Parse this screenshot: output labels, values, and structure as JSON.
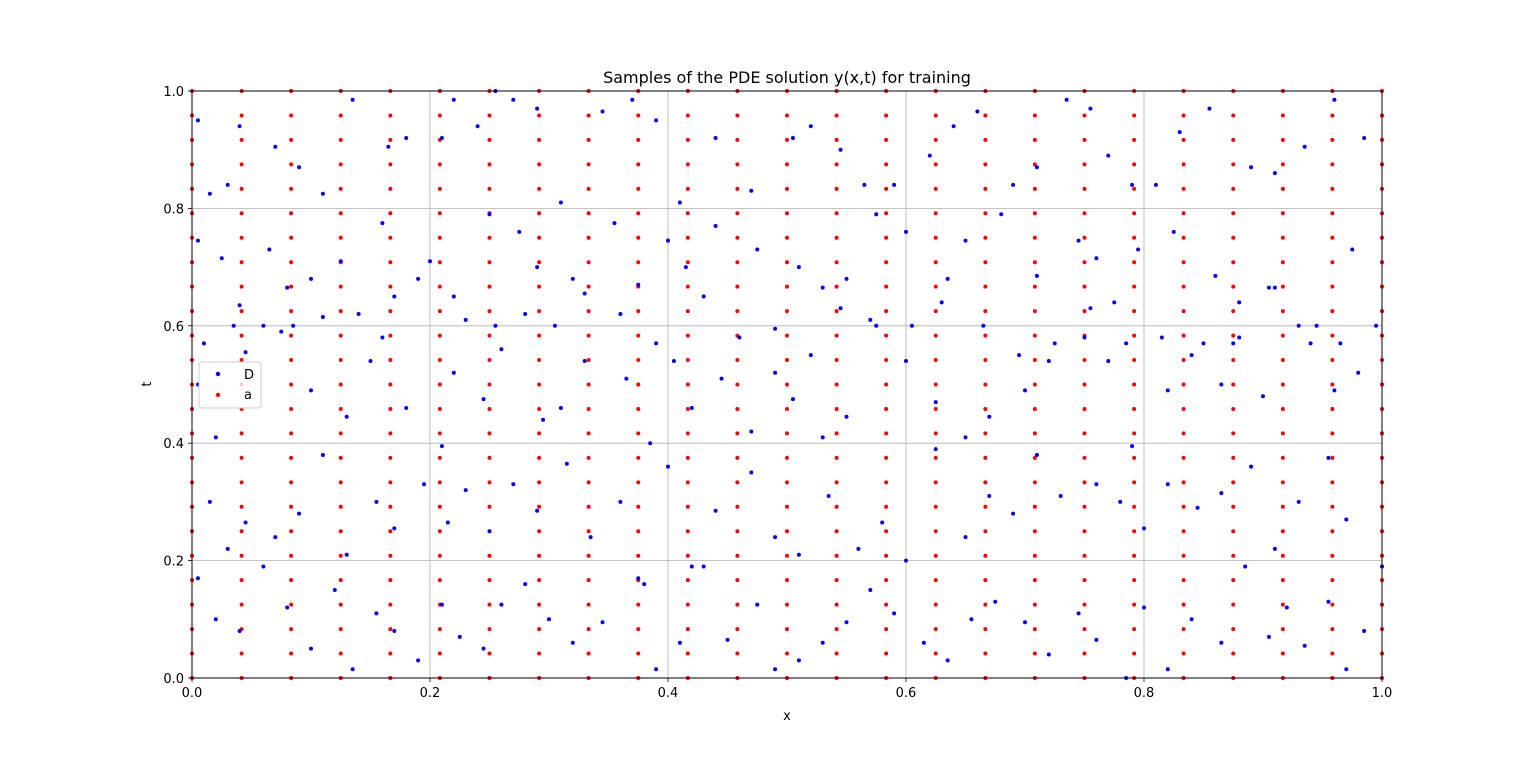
{
  "chart_data": {
    "type": "scatter",
    "title": "Samples of the PDE solution y(x,t) for training",
    "xlabel": "x",
    "ylabel": "t",
    "xlim": [
      0.0,
      1.0
    ],
    "ylim": [
      0.0,
      1.0
    ],
    "grid": true,
    "legend_position": "center-left",
    "x_ticks": [
      "0.0",
      "0.2",
      "0.4",
      "0.6",
      "0.8",
      "1.0"
    ],
    "y_ticks": [
      "0.0",
      "0.2",
      "0.4",
      "0.6",
      "0.8",
      "1.0"
    ],
    "series": [
      {
        "name": "D",
        "color": "#0000ff",
        "points": [
          [
            0.005,
            0.95
          ],
          [
            0.015,
            0.825
          ],
          [
            0.03,
            0.84
          ],
          [
            0.04,
            0.94
          ],
          [
            0.07,
            0.905
          ],
          [
            0.09,
            0.87
          ],
          [
            0.11,
            0.825
          ],
          [
            0.135,
            0.985
          ],
          [
            0.165,
            0.905
          ],
          [
            0.18,
            0.92
          ],
          [
            0.21,
            0.92
          ],
          [
            0.22,
            0.985
          ],
          [
            0.24,
            0.94
          ],
          [
            0.255,
            1.0
          ],
          [
            0.27,
            0.985
          ],
          [
            0.29,
            0.97
          ],
          [
            0.31,
            0.81
          ],
          [
            0.345,
            0.965
          ],
          [
            0.37,
            0.985
          ],
          [
            0.39,
            0.95
          ],
          [
            0.41,
            0.81
          ],
          [
            0.44,
            0.92
          ],
          [
            0.47,
            0.83
          ],
          [
            0.505,
            0.92
          ],
          [
            0.52,
            0.94
          ],
          [
            0.545,
            0.9
          ],
          [
            0.565,
            0.84
          ],
          [
            0.59,
            0.84
          ],
          [
            0.62,
            0.89
          ],
          [
            0.64,
            0.94
          ],
          [
            0.66,
            0.965
          ],
          [
            0.69,
            0.84
          ],
          [
            0.71,
            0.87
          ],
          [
            0.735,
            0.985
          ],
          [
            0.755,
            0.97
          ],
          [
            0.77,
            0.89
          ],
          [
            0.79,
            0.84
          ],
          [
            0.81,
            0.84
          ],
          [
            0.83,
            0.93
          ],
          [
            0.855,
            0.97
          ],
          [
            0.89,
            0.87
          ],
          [
            0.91,
            0.86
          ],
          [
            0.935,
            0.905
          ],
          [
            0.96,
            0.985
          ],
          [
            0.985,
            0.92
          ],
          [
            0.005,
            0.745
          ],
          [
            0.025,
            0.715
          ],
          [
            0.04,
            0.635
          ],
          [
            0.065,
            0.73
          ],
          [
            0.08,
            0.665
          ],
          [
            0.1,
            0.68
          ],
          [
            0.125,
            0.71
          ],
          [
            0.16,
            0.775
          ],
          [
            0.17,
            0.65
          ],
          [
            0.2,
            0.71
          ],
          [
            0.22,
            0.65
          ],
          [
            0.25,
            0.79
          ],
          [
            0.275,
            0.76
          ],
          [
            0.29,
            0.7
          ],
          [
            0.32,
            0.68
          ],
          [
            0.355,
            0.775
          ],
          [
            0.375,
            0.67
          ],
          [
            0.4,
            0.745
          ],
          [
            0.415,
            0.7
          ],
          [
            0.44,
            0.77
          ],
          [
            0.475,
            0.73
          ],
          [
            0.51,
            0.7
          ],
          [
            0.53,
            0.665
          ],
          [
            0.55,
            0.68
          ],
          [
            0.575,
            0.79
          ],
          [
            0.6,
            0.76
          ],
          [
            0.63,
            0.64
          ],
          [
            0.65,
            0.745
          ],
          [
            0.68,
            0.79
          ],
          [
            0.71,
            0.685
          ],
          [
            0.745,
            0.745
          ],
          [
            0.76,
            0.715
          ],
          [
            0.775,
            0.64
          ],
          [
            0.795,
            0.73
          ],
          [
            0.825,
            0.76
          ],
          [
            0.86,
            0.685
          ],
          [
            0.88,
            0.64
          ],
          [
            0.91,
            0.665
          ],
          [
            0.945,
            0.6
          ],
          [
            0.975,
            0.73
          ],
          [
            0.005,
            0.5
          ],
          [
            0.02,
            0.41
          ],
          [
            0.045,
            0.555
          ],
          [
            0.075,
            0.59
          ],
          [
            0.1,
            0.49
          ],
          [
            0.13,
            0.445
          ],
          [
            0.15,
            0.54
          ],
          [
            0.18,
            0.46
          ],
          [
            0.21,
            0.395
          ],
          [
            0.22,
            0.52
          ],
          [
            0.245,
            0.475
          ],
          [
            0.26,
            0.56
          ],
          [
            0.295,
            0.44
          ],
          [
            0.31,
            0.46
          ],
          [
            0.33,
            0.54
          ],
          [
            0.365,
            0.51
          ],
          [
            0.385,
            0.4
          ],
          [
            0.405,
            0.54
          ],
          [
            0.42,
            0.46
          ],
          [
            0.445,
            0.51
          ],
          [
            0.47,
            0.42
          ],
          [
            0.49,
            0.52
          ],
          [
            0.505,
            0.475
          ],
          [
            0.53,
            0.41
          ],
          [
            0.55,
            0.445
          ],
          [
            0.575,
            0.6
          ],
          [
            0.6,
            0.54
          ],
          [
            0.625,
            0.47
          ],
          [
            0.65,
            0.41
          ],
          [
            0.67,
            0.445
          ],
          [
            0.7,
            0.49
          ],
          [
            0.72,
            0.54
          ],
          [
            0.75,
            0.58
          ],
          [
            0.77,
            0.54
          ],
          [
            0.79,
            0.395
          ],
          [
            0.82,
            0.49
          ],
          [
            0.84,
            0.55
          ],
          [
            0.865,
            0.5
          ],
          [
            0.88,
            0.58
          ],
          [
            0.9,
            0.48
          ],
          [
            0.93,
            0.6
          ],
          [
            0.96,
            0.49
          ],
          [
            0.98,
            0.52
          ],
          [
            0.015,
            0.3
          ],
          [
            0.03,
            0.22
          ],
          [
            0.045,
            0.265
          ],
          [
            0.07,
            0.24
          ],
          [
            0.09,
            0.28
          ],
          [
            0.11,
            0.38
          ],
          [
            0.13,
            0.21
          ],
          [
            0.155,
            0.3
          ],
          [
            0.17,
            0.255
          ],
          [
            0.195,
            0.33
          ],
          [
            0.215,
            0.265
          ],
          [
            0.23,
            0.32
          ],
          [
            0.25,
            0.25
          ],
          [
            0.27,
            0.33
          ],
          [
            0.29,
            0.285
          ],
          [
            0.315,
            0.365
          ],
          [
            0.335,
            0.24
          ],
          [
            0.36,
            0.3
          ],
          [
            0.38,
            0.16
          ],
          [
            0.4,
            0.36
          ],
          [
            0.42,
            0.19
          ],
          [
            0.44,
            0.285
          ],
          [
            0.47,
            0.35
          ],
          [
            0.49,
            0.24
          ],
          [
            0.51,
            0.21
          ],
          [
            0.535,
            0.31
          ],
          [
            0.56,
            0.22
          ],
          [
            0.58,
            0.265
          ],
          [
            0.6,
            0.2
          ],
          [
            0.625,
            0.39
          ],
          [
            0.65,
            0.24
          ],
          [
            0.67,
            0.31
          ],
          [
            0.69,
            0.28
          ],
          [
            0.71,
            0.38
          ],
          [
            0.73,
            0.31
          ],
          [
            0.76,
            0.33
          ],
          [
            0.78,
            0.3
          ],
          [
            0.8,
            0.255
          ],
          [
            0.82,
            0.33
          ],
          [
            0.845,
            0.29
          ],
          [
            0.865,
            0.315
          ],
          [
            0.89,
            0.36
          ],
          [
            0.91,
            0.22
          ],
          [
            0.93,
            0.3
          ],
          [
            0.955,
            0.375
          ],
          [
            0.97,
            0.27
          ],
          [
            0.005,
            0.17
          ],
          [
            0.02,
            0.1
          ],
          [
            0.04,
            0.08
          ],
          [
            0.06,
            0.19
          ],
          [
            0.08,
            0.12
          ],
          [
            0.1,
            0.05
          ],
          [
            0.12,
            0.15
          ],
          [
            0.135,
            0.015
          ],
          [
            0.155,
            0.11
          ],
          [
            0.17,
            0.08
          ],
          [
            0.19,
            0.03
          ],
          [
            0.21,
            0.125
          ],
          [
            0.225,
            0.07
          ],
          [
            0.245,
            0.05
          ],
          [
            0.26,
            0.125
          ],
          [
            0.28,
            0.16
          ],
          [
            0.3,
            0.1
          ],
          [
            0.32,
            0.06
          ],
          [
            0.345,
            0.095
          ],
          [
            0.375,
            0.17
          ],
          [
            0.39,
            0.015
          ],
          [
            0.41,
            0.06
          ],
          [
            0.43,
            0.19
          ],
          [
            0.45,
            0.065
          ],
          [
            0.475,
            0.125
          ],
          [
            0.49,
            0.015
          ],
          [
            0.51,
            0.03
          ],
          [
            0.53,
            0.06
          ],
          [
            0.55,
            0.095
          ],
          [
            0.57,
            0.15
          ],
          [
            0.59,
            0.11
          ],
          [
            0.615,
            0.06
          ],
          [
            0.635,
            0.03
          ],
          [
            0.655,
            0.1
          ],
          [
            0.675,
            0.13
          ],
          [
            0.7,
            0.095
          ],
          [
            0.72,
            0.04
          ],
          [
            0.745,
            0.11
          ],
          [
            0.76,
            0.065
          ],
          [
            0.785,
            0.0
          ],
          [
            0.8,
            0.12
          ],
          [
            0.82,
            0.015
          ],
          [
            0.84,
            0.1
          ],
          [
            0.865,
            0.06
          ],
          [
            0.885,
            0.19
          ],
          [
            0.905,
            0.07
          ],
          [
            0.92,
            0.12
          ],
          [
            0.935,
            0.055
          ],
          [
            0.955,
            0.13
          ],
          [
            0.97,
            0.015
          ],
          [
            0.985,
            0.08
          ],
          [
            1.0,
            0.19
          ],
          [
            0.01,
            0.57
          ],
          [
            0.035,
            0.6
          ],
          [
            0.06,
            0.6
          ],
          [
            0.085,
            0.6
          ],
          [
            0.11,
            0.615
          ],
          [
            0.14,
            0.62
          ],
          [
            0.16,
            0.58
          ],
          [
            0.19,
            0.68
          ],
          [
            0.23,
            0.61
          ],
          [
            0.255,
            0.6
          ],
          [
            0.28,
            0.62
          ],
          [
            0.305,
            0.6
          ],
          [
            0.33,
            0.655
          ],
          [
            0.36,
            0.62
          ],
          [
            0.39,
            0.57
          ],
          [
            0.43,
            0.65
          ],
          [
            0.46,
            0.58
          ],
          [
            0.49,
            0.595
          ],
          [
            0.52,
            0.55
          ],
          [
            0.545,
            0.63
          ],
          [
            0.57,
            0.61
          ],
          [
            0.605,
            0.6
          ],
          [
            0.635,
            0.68
          ],
          [
            0.665,
            0.6
          ],
          [
            0.695,
            0.55
          ],
          [
            0.725,
            0.57
          ],
          [
            0.755,
            0.63
          ],
          [
            0.785,
            0.57
          ],
          [
            0.815,
            0.58
          ],
          [
            0.85,
            0.57
          ],
          [
            0.875,
            0.57
          ],
          [
            0.905,
            0.665
          ],
          [
            0.94,
            0.57
          ],
          [
            0.965,
            0.57
          ],
          [
            0.995,
            0.6
          ]
        ]
      },
      {
        "name": "a",
        "color": "#ff0000",
        "grid_x": [
          0.0,
          0.0417,
          0.0833,
          0.125,
          0.1667,
          0.2083,
          0.25,
          0.2917,
          0.3333,
          0.375,
          0.4167,
          0.4583,
          0.5,
          0.5417,
          0.5833,
          0.625,
          0.6667,
          0.7083,
          0.75,
          0.7917,
          0.8333,
          0.875,
          0.9167,
          0.9583,
          1.0
        ],
        "grid_t": [
          0.0,
          0.0417,
          0.0833,
          0.125,
          0.1667,
          0.2083,
          0.25,
          0.2917,
          0.3333,
          0.375,
          0.4167,
          0.4583,
          0.5,
          0.5417,
          0.5833,
          0.625,
          0.6667,
          0.7083,
          0.75,
          0.7917,
          0.8333,
          0.875,
          0.9167,
          0.9583,
          1.0
        ]
      }
    ]
  }
}
